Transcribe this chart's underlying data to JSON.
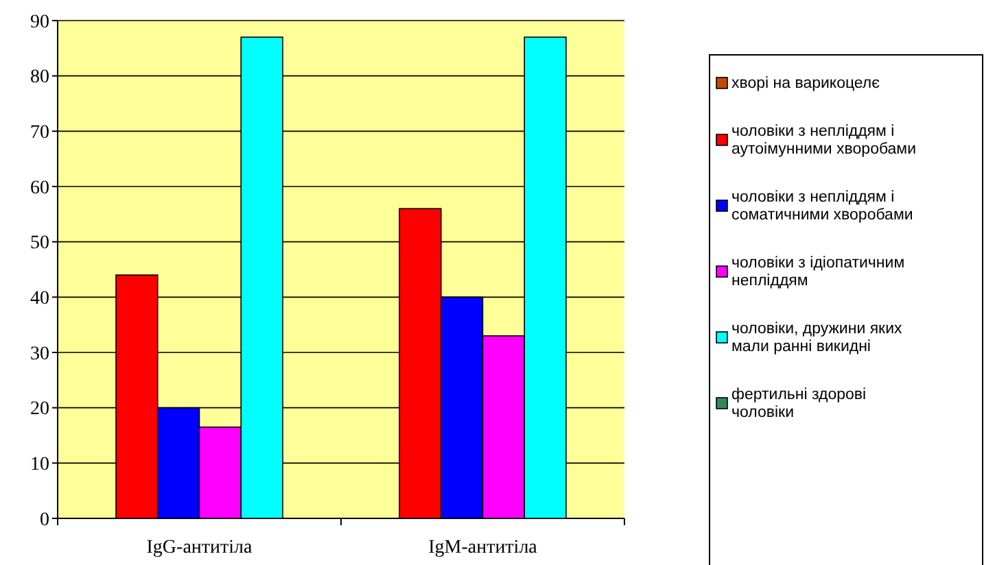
{
  "chart_data": {
    "type": "bar",
    "categories": [
      "IgG-антитіла",
      "IgM-антитіла"
    ],
    "series": [
      {
        "name": "хворі на варикоцелє",
        "color": "#c04b00",
        "values": [
          0,
          0
        ]
      },
      {
        "name": "чоловіки з непліддям і аутоімунними хворобами",
        "color": "#ff0000",
        "values": [
          44,
          56
        ]
      },
      {
        "name": "чоловіки з непліддям і соматичними хворобами",
        "color": "#0000ff",
        "values": [
          20,
          40
        ]
      },
      {
        "name": "чоловіки з ідіопатичним непліддям",
        "color": "#ff00ff",
        "values": [
          16.5,
          33
        ]
      },
      {
        "name": "чоловіки, дружини яких мали ранні викидні",
        "color": "#00ffff",
        "values": [
          87,
          87
        ]
      },
      {
        "name": "фертильні здорові чоловіки",
        "color": "#2e8b57",
        "values": [
          0,
          0
        ]
      }
    ],
    "ylim": [
      0,
      90
    ],
    "yticks": [
      0,
      10,
      20,
      30,
      40,
      50,
      60,
      70,
      80,
      90
    ],
    "grid": "y",
    "legend": "right"
  }
}
